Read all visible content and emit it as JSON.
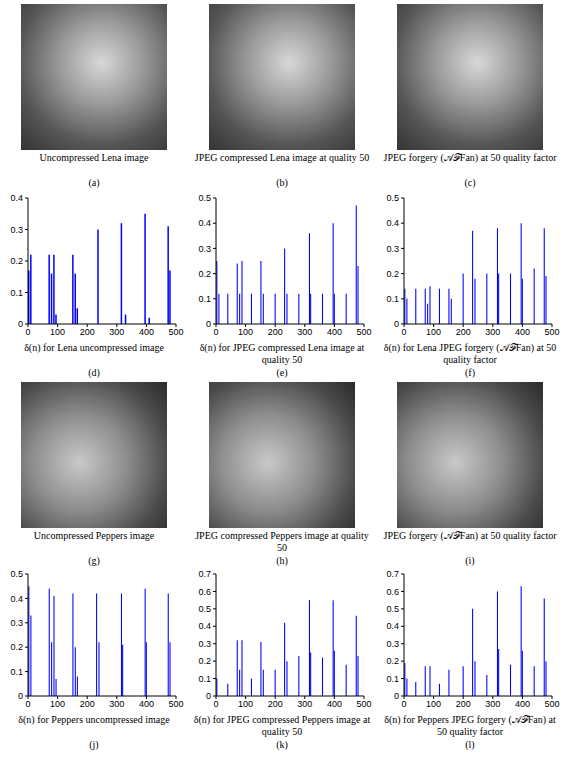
{
  "images": [
    {
      "caption": "Uncompressed Lena image",
      "letter": "(a)"
    },
    {
      "caption": "JPEG compressed Lena image at quality 50",
      "letter": "(b)"
    },
    {
      "caption": "JPEG forgery (𝒜ℱFan) at 50 quality factor",
      "letter": "(c)"
    },
    {
      "caption": "Uncompressed Peppers image",
      "letter": "(g)"
    },
    {
      "caption": "JPEG compressed Peppers image at quality 50",
      "letter": "(h)"
    },
    {
      "caption": "JPEG forgery (𝒜ℱFan) at 50 quality factor",
      "letter": "(i)"
    }
  ],
  "chart_data": [
    {
      "type": "bar",
      "caption": "δ(n) for Lena uncompressed image",
      "letter": "(d)",
      "color": "#0000ff",
      "x": [
        3,
        10,
        72,
        80,
        88,
        95,
        152,
        160,
        167,
        237,
        316,
        330,
        396,
        410,
        474,
        480
      ],
      "values": [
        0.17,
        0.22,
        0.22,
        0.16,
        0.22,
        0.03,
        0.22,
        0.16,
        0.05,
        0.3,
        0.32,
        0.03,
        0.35,
        0.02,
        0.31,
        0.17
      ],
      "xlim": [
        0,
        500
      ],
      "xticks": [
        0,
        100,
        200,
        300,
        400,
        500
      ],
      "ylim": [
        0,
        0.4
      ],
      "yticks": [
        0,
        0.1,
        0.2,
        0.3,
        0.4
      ]
    },
    {
      "type": "bar",
      "caption": "δ(n) for JPEG compressed Lena image at quality 50",
      "letter": "(e)",
      "color": "#0000ff",
      "x": [
        3,
        10,
        40,
        72,
        80,
        88,
        120,
        152,
        160,
        200,
        232,
        240,
        280,
        316,
        320,
        360,
        396,
        400,
        440,
        474,
        480
      ],
      "values": [
        0.25,
        0.12,
        0.12,
        0.24,
        0.12,
        0.25,
        0.12,
        0.25,
        0.12,
        0.12,
        0.3,
        0.12,
        0.12,
        0.36,
        0.12,
        0.12,
        0.4,
        0.12,
        0.12,
        0.47,
        0.23
      ],
      "xlim": [
        0,
        500
      ],
      "xticks": [
        0,
        100,
        200,
        300,
        400,
        500
      ],
      "ylim": [
        0,
        0.5
      ],
      "yticks": [
        0,
        0.1,
        0.2,
        0.3,
        0.4,
        0.5
      ]
    },
    {
      "type": "bar",
      "caption": "δ(n) for Lena JPEG forgery (𝒜ℱFan) at 50 quality factor",
      "letter": "(f)",
      "color": "#0000ff",
      "x": [
        3,
        10,
        40,
        72,
        80,
        88,
        120,
        152,
        160,
        200,
        232,
        240,
        280,
        316,
        320,
        360,
        396,
        400,
        440,
        474,
        480
      ],
      "values": [
        0.14,
        0.1,
        0.14,
        0.14,
        0.08,
        0.15,
        0.14,
        0.14,
        0.1,
        0.2,
        0.37,
        0.18,
        0.2,
        0.38,
        0.2,
        0.2,
        0.4,
        0.18,
        0.22,
        0.38,
        0.19
      ],
      "xlim": [
        0,
        500
      ],
      "xticks": [
        0,
        100,
        200,
        300,
        400,
        500
      ],
      "ylim": [
        0,
        0.5
      ],
      "yticks": [
        0,
        0.1,
        0.2,
        0.3,
        0.4,
        0.5
      ]
    },
    {
      "type": "bar",
      "caption": "δ(n) for Peppers uncompressed image",
      "letter": "(j)",
      "color": "#0000ff",
      "x": [
        3,
        10,
        72,
        80,
        88,
        95,
        152,
        160,
        167,
        232,
        240,
        316,
        320,
        396,
        400,
        474,
        480
      ],
      "values": [
        0.45,
        0.33,
        0.44,
        0.22,
        0.41,
        0.07,
        0.42,
        0.2,
        0.08,
        0.42,
        0.22,
        0.42,
        0.21,
        0.44,
        0.22,
        0.42,
        0.22
      ],
      "xlim": [
        0,
        500
      ],
      "xticks": [
        0,
        100,
        200,
        300,
        400,
        500
      ],
      "ylim": [
        0,
        0.5
      ],
      "yticks": [
        0,
        0.1,
        0.2,
        0.3,
        0.4,
        0.5
      ]
    },
    {
      "type": "bar",
      "caption": "δ(n) for JPEG compressed Peppers image at quality 50",
      "letter": "(k)",
      "color": "#0000ff",
      "x": [
        3,
        40,
        72,
        80,
        88,
        120,
        152,
        160,
        200,
        232,
        240,
        280,
        316,
        320,
        360,
        396,
        400,
        440,
        474,
        480
      ],
      "values": [
        0.1,
        0.07,
        0.32,
        0.15,
        0.32,
        0.1,
        0.31,
        0.15,
        0.15,
        0.42,
        0.2,
        0.23,
        0.55,
        0.25,
        0.22,
        0.55,
        0.26,
        0.18,
        0.46,
        0.23
      ],
      "xlim": [
        0,
        500
      ],
      "xticks": [
        0,
        100,
        200,
        300,
        400,
        500
      ],
      "ylim": [
        0,
        0.7
      ],
      "yticks": [
        0,
        0.1,
        0.2,
        0.3,
        0.4,
        0.5,
        0.6,
        0.7
      ]
    },
    {
      "type": "bar",
      "caption": "δ(n) for Peppers JPEG forgery (𝒜ℱFan) at 50 quality factor",
      "letter": "(l)",
      "color": "#0000ff",
      "x": [
        3,
        10,
        40,
        72,
        88,
        120,
        152,
        200,
        232,
        240,
        280,
        316,
        320,
        360,
        396,
        400,
        440,
        474,
        480
      ],
      "values": [
        0.19,
        0.1,
        0.08,
        0.17,
        0.17,
        0.07,
        0.15,
        0.17,
        0.5,
        0.2,
        0.12,
        0.6,
        0.27,
        0.18,
        0.63,
        0.26,
        0.17,
        0.56,
        0.2
      ],
      "xlim": [
        0,
        500
      ],
      "xticks": [
        0,
        100,
        200,
        300,
        400,
        500
      ],
      "ylim": [
        0,
        0.7
      ],
      "yticks": [
        0,
        0.1,
        0.2,
        0.3,
        0.4,
        0.5,
        0.6,
        0.7
      ]
    }
  ]
}
